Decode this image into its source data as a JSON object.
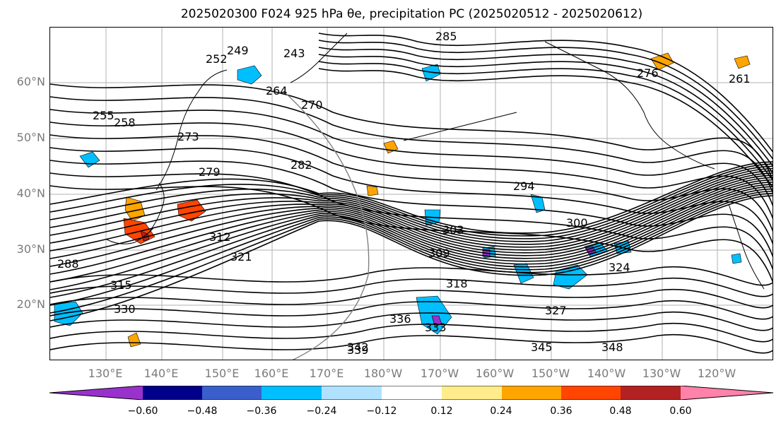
{
  "title": "2025020300 F024 925 hPa θe, precipitation PC (2025020512 - 2025020612)",
  "map": {
    "lat_labels": [
      "60°N",
      "50°N",
      "40°N",
      "30°N",
      "20°N"
    ],
    "lon_labels": [
      "130°E",
      "140°E",
      "150°E",
      "160°E",
      "170°E",
      "180°W",
      "170°W",
      "160°W",
      "150°W",
      "140°W",
      "130°W",
      "120°W"
    ],
    "contour_labels": [
      "252",
      "249",
      "243",
      "258",
      "255",
      "264",
      "270",
      "273",
      "279",
      "282",
      "285",
      "288",
      "294",
      "300",
      "303",
      "309",
      "312",
      "315",
      "318",
      "321",
      "324",
      "327",
      "330",
      "333",
      "336",
      "339",
      "342",
      "345",
      "348",
      "261",
      "276"
    ],
    "contour_color": "#000000",
    "coastline_color": "#000000",
    "gridline_color": "#b0b0b0"
  },
  "colorbar": {
    "ticks": [
      "−0.60",
      "−0.48",
      "−0.36",
      "−0.24",
      "−0.12",
      "0.12",
      "0.24",
      "0.36",
      "0.48",
      "0.60"
    ],
    "colors": [
      "#9932cc",
      "#00008b",
      "#3a5fcd",
      "#00bfff",
      "#b0e2ff",
      "#ffffff",
      "#ffec8b",
      "#ffa500",
      "#ff4500",
      "#b22222",
      "#ff82ab"
    ],
    "extend": "both"
  }
}
